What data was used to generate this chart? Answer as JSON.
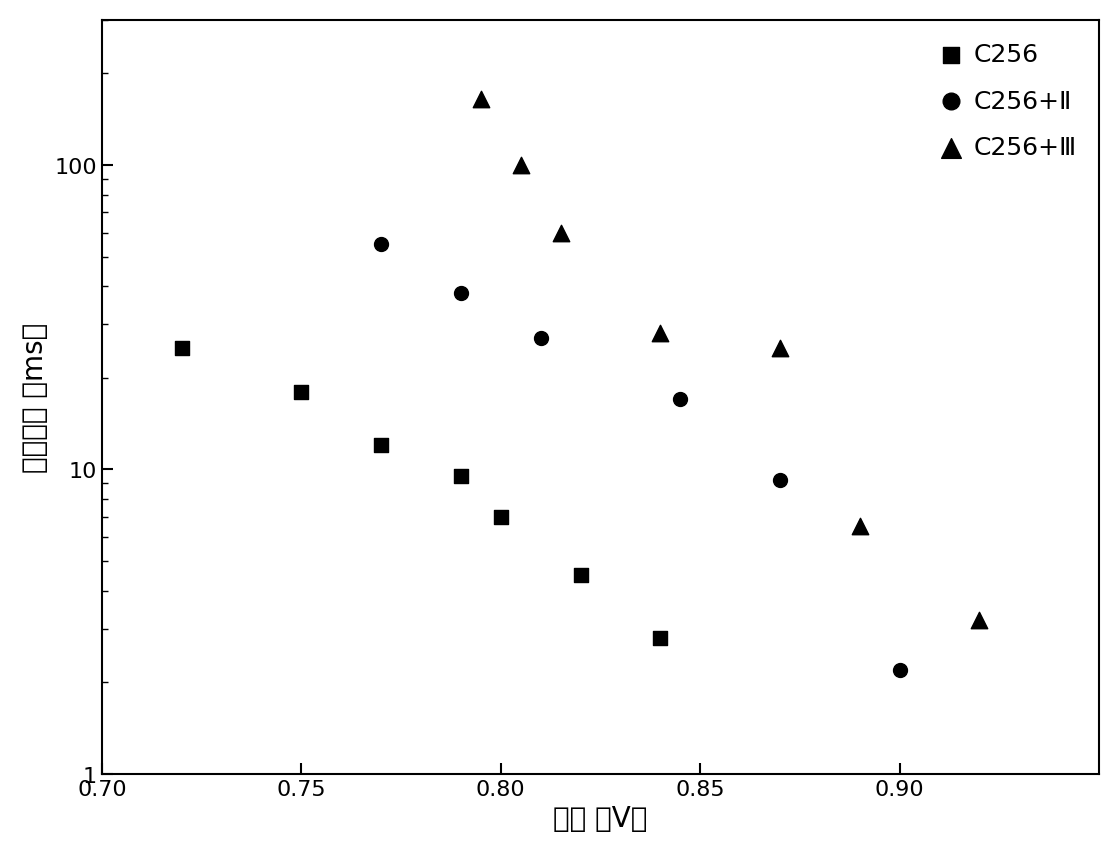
{
  "c256_x": [
    0.72,
    0.75,
    0.77,
    0.79,
    0.8,
    0.82,
    0.84
  ],
  "c256_y": [
    25,
    18,
    12,
    9.5,
    7.0,
    4.5,
    2.8
  ],
  "c256_II_x": [
    0.77,
    0.79,
    0.81,
    0.845,
    0.87,
    0.9
  ],
  "c256_II_y": [
    55,
    38,
    27,
    17,
    9.2,
    2.2
  ],
  "c256_III_x": [
    0.795,
    0.805,
    0.815,
    0.84,
    0.87,
    0.89,
    0.92
  ],
  "c256_III_y": [
    165,
    100,
    60,
    28,
    25,
    6.5,
    3.2
  ],
  "xlabel": "偏压 ［V］",
  "ylabel": "电子寿命 ［ms］",
  "legend_label_1": "C256",
  "legend_label_2": "C256+Ⅱ",
  "legend_label_3": "C256+Ⅲ",
  "xlim": [
    0.7,
    0.95
  ],
  "ylim": [
    1,
    300
  ],
  "xticks": [
    0.7,
    0.75,
    0.8,
    0.85,
    0.9
  ],
  "marker_size_sq": 100,
  "marker_size_circle": 100,
  "marker_size_tri": 140,
  "color": "#000000",
  "background_color": "#ffffff",
  "xlabel_fontsize": 20,
  "ylabel_fontsize": 20,
  "tick_labelsize": 16,
  "legend_fontsize": 18
}
